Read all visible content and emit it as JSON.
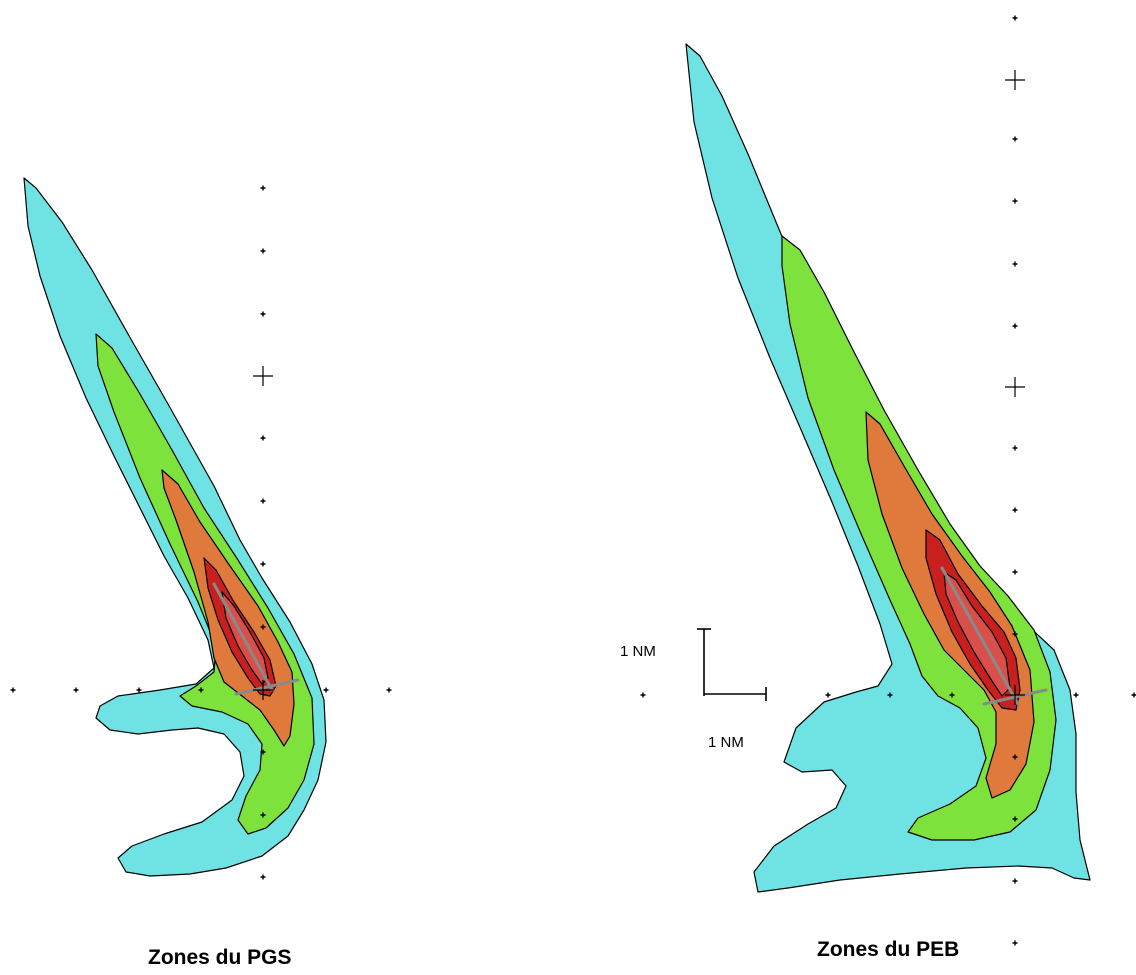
{
  "colors": {
    "zone_outer": "#6fe3e3",
    "zone_2": "#7ee23c",
    "zone_3": "#e07a3c",
    "zone_4": "#c8201f",
    "zone_5": "#d94f4a",
    "runway": "#8a8a8a",
    "outline": "#000000"
  },
  "maps": [
    {
      "id": "pgs",
      "caption": "Zones du PGS"
    },
    {
      "id": "peb",
      "caption": "Zones du PEB"
    }
  ],
  "scale": {
    "vertical_label": "1 NM",
    "horizontal_label": "1 NM"
  }
}
